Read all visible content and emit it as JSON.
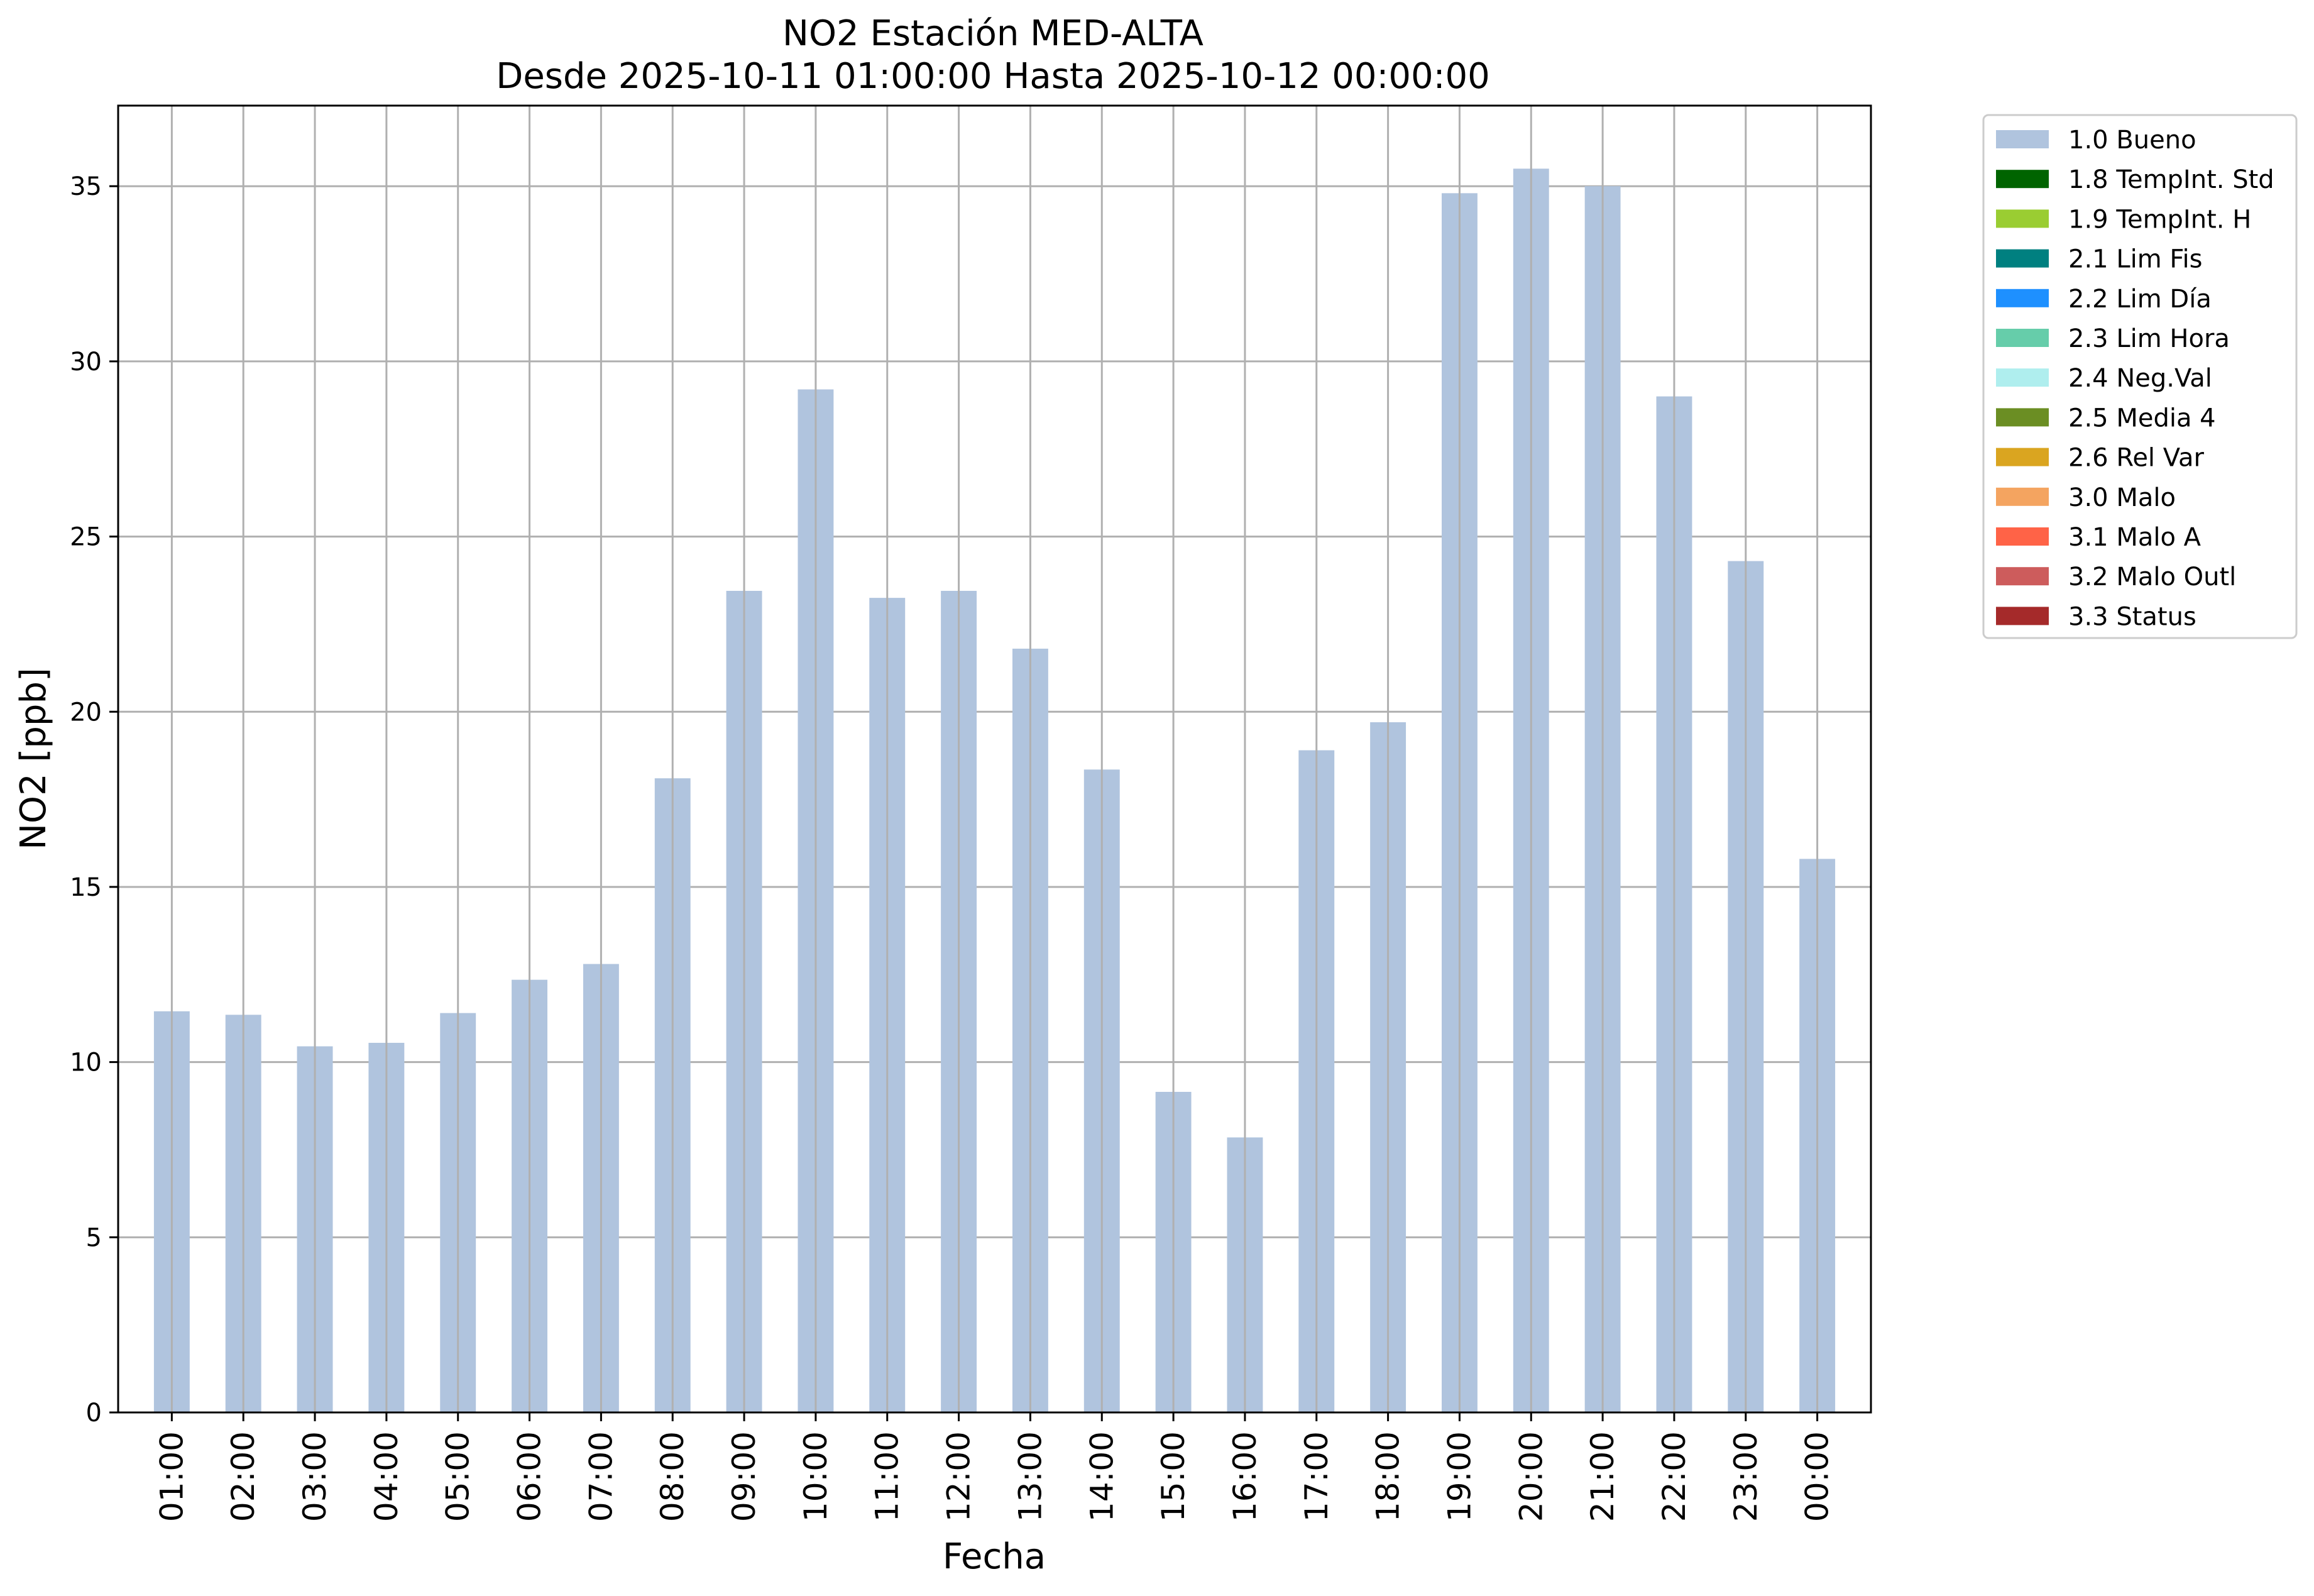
{
  "chart_data": {
    "type": "bar",
    "title": "NO2 Estación MED-ALTA",
    "subtitle": "Desde 2025-10-11 01:00:00 Hasta 2025-10-12 00:00:00",
    "xlabel": "Fecha",
    "ylabel": "NO2 [ppb]",
    "ylim": [
      0,
      37.3
    ],
    "yticks": [
      "0",
      "5",
      "10",
      "15",
      "20",
      "25",
      "30",
      "35"
    ],
    "grid": true,
    "legend_position": "outside top-right",
    "categories": [
      "01:00",
      "02:00",
      "03:00",
      "04:00",
      "05:00",
      "06:00",
      "07:00",
      "08:00",
      "09:00",
      "10:00",
      "11:00",
      "12:00",
      "13:00",
      "14:00",
      "15:00",
      "16:00",
      "17:00",
      "18:00",
      "19:00",
      "20:00",
      "21:00",
      "22:00",
      "23:00",
      "00:00"
    ],
    "series": [
      {
        "name": "1.0 Bueno",
        "color": "#b0c4de",
        "values": [
          11.45,
          11.35,
          10.45,
          10.55,
          11.4,
          12.35,
          12.8,
          18.1,
          23.45,
          29.2,
          23.25,
          23.45,
          21.8,
          18.35,
          9.15,
          7.85,
          18.9,
          19.7,
          34.8,
          35.5,
          35.0,
          29.0,
          24.3,
          15.8
        ]
      }
    ],
    "legend": [
      {
        "label": "1.0 Bueno",
        "color": "#b0c4de"
      },
      {
        "label": "1.8 TempInt. Std",
        "color": "#006400"
      },
      {
        "label": "1.9 TempInt. H",
        "color": "#9acd32"
      },
      {
        "label": "2.1 Lim Fis",
        "color": "#008080"
      },
      {
        "label": "2.2 Lim Día",
        "color": "#1e90ff"
      },
      {
        "label": "2.3 Lim Hora",
        "color": "#66cdaa"
      },
      {
        "label": "2.4 Neg.Val",
        "color": "#afeeee"
      },
      {
        "label": "2.5 Media 4",
        "color": "#6b8e23"
      },
      {
        "label": "2.6 Rel Var",
        "color": "#daa520"
      },
      {
        "label": "3.0 Malo",
        "color": "#f4a460"
      },
      {
        "label": "3.1 Malo A",
        "color": "#ff6347"
      },
      {
        "label": "3.2 Malo Outl",
        "color": "#cd5c5c"
      },
      {
        "label": "3.3 Status",
        "color": "#a52a2a"
      }
    ]
  }
}
